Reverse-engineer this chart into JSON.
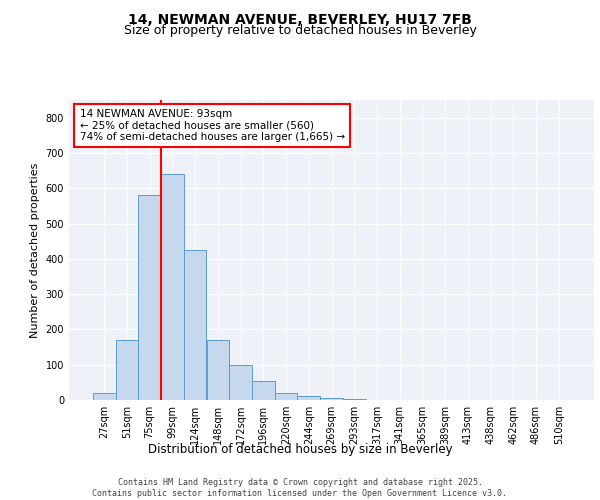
{
  "title_line1": "14, NEWMAN AVENUE, BEVERLEY, HU17 7FB",
  "title_line2": "Size of property relative to detached houses in Beverley",
  "xlabel": "Distribution of detached houses by size in Beverley",
  "ylabel": "Number of detached properties",
  "bar_labels": [
    "27sqm",
    "51sqm",
    "75sqm",
    "99sqm",
    "124sqm",
    "148sqm",
    "172sqm",
    "196sqm",
    "220sqm",
    "244sqm",
    "269sqm",
    "293sqm",
    "317sqm",
    "341sqm",
    "365sqm",
    "389sqm",
    "413sqm",
    "438sqm",
    "462sqm",
    "486sqm",
    "510sqm"
  ],
  "bar_values": [
    20,
    170,
    580,
    640,
    425,
    170,
    100,
    55,
    20,
    10,
    5,
    2,
    1,
    1,
    0,
    0,
    0,
    0,
    0,
    0,
    0
  ],
  "bar_color": "#c5d8ed",
  "bar_edge_color": "#5b9bd5",
  "vline_color": "red",
  "annotation_text": "14 NEWMAN AVENUE: 93sqm\n← 25% of detached houses are smaller (560)\n74% of semi-detached houses are larger (1,665) →",
  "annotation_box_color": "white",
  "annotation_box_edge": "red",
  "ylim": [
    0,
    850
  ],
  "yticks": [
    0,
    100,
    200,
    300,
    400,
    500,
    600,
    700,
    800
  ],
  "background_color": "#eef2f8",
  "footer_text": "Contains HM Land Registry data © Crown copyright and database right 2025.\nContains public sector information licensed under the Open Government Licence v3.0.",
  "grid_color": "white",
  "title_fontsize": 10,
  "subtitle_fontsize": 9,
  "tick_fontsize": 7,
  "ylabel_fontsize": 8,
  "xlabel_fontsize": 8.5,
  "footer_fontsize": 6,
  "annotation_fontsize": 7.5
}
